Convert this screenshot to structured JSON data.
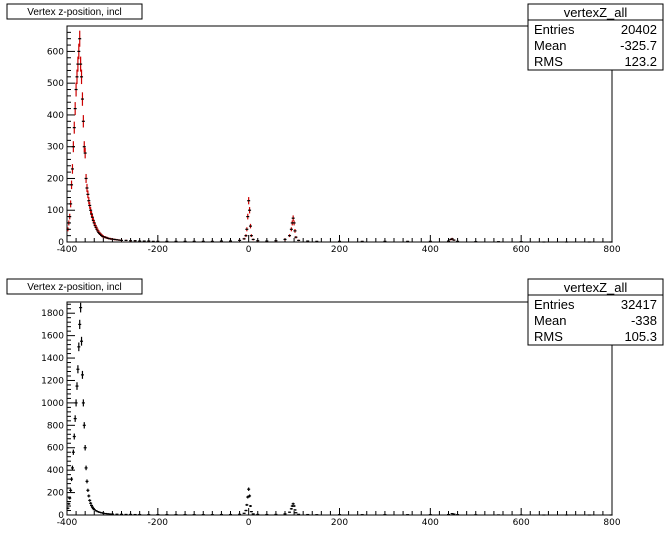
{
  "chart_data": [
    {
      "type": "histogram",
      "title": "Vertex z-position, incl",
      "stats": {
        "name": "vertexZ_all",
        "rows": [
          {
            "label": "Entries",
            "value": "20402"
          },
          {
            "label": "Mean",
            "value": "-325.7"
          },
          {
            "label": "RMS",
            "value": "123.2"
          }
        ]
      },
      "xlim": [
        -400,
        800
      ],
      "ylim": [
        0,
        680
      ],
      "x_ticks": [
        -400,
        -200,
        0,
        200,
        400,
        600,
        800
      ],
      "y_ticks": [
        0,
        100,
        200,
        300,
        400,
        500,
        600
      ],
      "grid": false,
      "marker_color": "#000000",
      "error_color": "#cc0000",
      "points": [
        [
          -398,
          40
        ],
        [
          -396,
          60
        ],
        [
          -394,
          80
        ],
        [
          -392,
          120
        ],
        [
          -390,
          180
        ],
        [
          -388,
          230
        ],
        [
          -386,
          300
        ],
        [
          -384,
          360
        ],
        [
          -382,
          420
        ],
        [
          -380,
          480
        ],
        [
          -378,
          520
        ],
        [
          -376,
          560
        ],
        [
          -374,
          600
        ],
        [
          -372,
          640
        ],
        [
          -370,
          560
        ],
        [
          -368,
          520
        ],
        [
          -366,
          450
        ],
        [
          -364,
          380
        ],
        [
          -362,
          300
        ],
        [
          -360,
          280
        ],
        [
          -358,
          200
        ],
        [
          -356,
          170
        ],
        [
          -354,
          150
        ],
        [
          -352,
          130
        ],
        [
          -350,
          115
        ],
        [
          -348,
          100
        ],
        [
          -346,
          88
        ],
        [
          -344,
          78
        ],
        [
          -342,
          68
        ],
        [
          -340,
          60
        ],
        [
          -338,
          52
        ],
        [
          -336,
          46
        ],
        [
          -334,
          40
        ],
        [
          -332,
          35
        ],
        [
          -330,
          30
        ],
        [
          -328,
          27
        ],
        [
          -326,
          24
        ],
        [
          -324,
          21
        ],
        [
          -322,
          19
        ],
        [
          -320,
          17
        ],
        [
          -316,
          15
        ],
        [
          -312,
          13
        ],
        [
          -308,
          11
        ],
        [
          -304,
          10
        ],
        [
          -300,
          9
        ],
        [
          -295,
          8
        ],
        [
          -290,
          7
        ],
        [
          -285,
          6
        ],
        [
          -280,
          5
        ],
        [
          -270,
          5
        ],
        [
          -260,
          4
        ],
        [
          -250,
          4
        ],
        [
          -240,
          3
        ],
        [
          -230,
          3
        ],
        [
          -220,
          3
        ],
        [
          -210,
          2
        ],
        [
          -200,
          2
        ],
        [
          -180,
          2
        ],
        [
          -160,
          2
        ],
        [
          -140,
          2
        ],
        [
          -120,
          2
        ],
        [
          -100,
          2
        ],
        [
          -80,
          2
        ],
        [
          -60,
          3
        ],
        [
          -40,
          3
        ],
        [
          -20,
          5
        ],
        [
          -10,
          10
        ],
        [
          -6,
          20
        ],
        [
          -4,
          40
        ],
        [
          -2,
          80
        ],
        [
          0,
          130
        ],
        [
          2,
          100
        ],
        [
          4,
          50
        ],
        [
          6,
          20
        ],
        [
          10,
          8
        ],
        [
          20,
          4
        ],
        [
          40,
          3
        ],
        [
          60,
          4
        ],
        [
          80,
          8
        ],
        [
          90,
          20
        ],
        [
          94,
          40
        ],
        [
          96,
          60
        ],
        [
          98,
          75
        ],
        [
          100,
          60
        ],
        [
          102,
          35
        ],
        [
          104,
          15
        ],
        [
          110,
          5
        ],
        [
          130,
          3
        ],
        [
          150,
          2
        ],
        [
          200,
          2
        ],
        [
          250,
          2
        ],
        [
          300,
          2
        ],
        [
          350,
          2
        ],
        [
          400,
          2
        ],
        [
          440,
          3
        ],
        [
          445,
          8
        ],
        [
          448,
          10
        ],
        [
          452,
          6
        ],
        [
          460,
          2
        ],
        [
          500,
          1
        ],
        [
          550,
          1
        ],
        [
          600,
          1
        ],
        [
          650,
          0
        ],
        [
          700,
          0
        ],
        [
          750,
          0
        ],
        [
          798,
          0
        ]
      ]
    },
    {
      "type": "histogram",
      "title": "Vertex z-position, incl",
      "stats": {
        "name": "vertexZ_all",
        "rows": [
          {
            "label": "Entries",
            "value": "32417"
          },
          {
            "label": "Mean",
            "value": "-338"
          },
          {
            "label": "RMS",
            "value": "105.3"
          }
        ]
      },
      "xlim": [
        -400,
        800
      ],
      "ylim": [
        0,
        1900
      ],
      "x_ticks": [
        -400,
        -200,
        0,
        200,
        400,
        600,
        800
      ],
      "y_ticks": [
        0,
        200,
        400,
        600,
        800,
        1000,
        1200,
        1400,
        1600,
        1800
      ],
      "grid": false,
      "marker_color": "#000000",
      "error_color": "#000000",
      "points": [
        [
          -398,
          60
        ],
        [
          -396,
          100
        ],
        [
          -394,
          150
        ],
        [
          -392,
          220
        ],
        [
          -390,
          320
        ],
        [
          -388,
          420
        ],
        [
          -386,
          560
        ],
        [
          -384,
          700
        ],
        [
          -382,
          860
        ],
        [
          -380,
          1000
        ],
        [
          -378,
          1150
        ],
        [
          -376,
          1300
        ],
        [
          -374,
          1500
        ],
        [
          -372,
          1700
        ],
        [
          -370,
          1850
        ],
        [
          -368,
          1550
        ],
        [
          -366,
          1250
        ],
        [
          -364,
          1000
        ],
        [
          -362,
          800
        ],
        [
          -360,
          600
        ],
        [
          -358,
          420
        ],
        [
          -356,
          300
        ],
        [
          -354,
          220
        ],
        [
          -352,
          170
        ],
        [
          -350,
          130
        ],
        [
          -348,
          105
        ],
        [
          -346,
          85
        ],
        [
          -344,
          70
        ],
        [
          -342,
          58
        ],
        [
          -340,
          48
        ],
        [
          -336,
          38
        ],
        [
          -332,
          30
        ],
        [
          -328,
          24
        ],
        [
          -324,
          20
        ],
        [
          -320,
          16
        ],
        [
          -315,
          13
        ],
        [
          -310,
          11
        ],
        [
          -305,
          9
        ],
        [
          -300,
          8
        ],
        [
          -290,
          7
        ],
        [
          -280,
          6
        ],
        [
          -270,
          5
        ],
        [
          -260,
          5
        ],
        [
          -250,
          4
        ],
        [
          -240,
          4
        ],
        [
          -220,
          3
        ],
        [
          -200,
          3
        ],
        [
          -180,
          3
        ],
        [
          -160,
          3
        ],
        [
          -140,
          3
        ],
        [
          -120,
          3
        ],
        [
          -100,
          3
        ],
        [
          -80,
          3
        ],
        [
          -60,
          4
        ],
        [
          -40,
          4
        ],
        [
          -20,
          6
        ],
        [
          -10,
          15
        ],
        [
          -6,
          40
        ],
        [
          -4,
          90
        ],
        [
          -2,
          160
        ],
        [
          0,
          230
        ],
        [
          2,
          170
        ],
        [
          4,
          80
        ],
        [
          6,
          30
        ],
        [
          10,
          10
        ],
        [
          20,
          5
        ],
        [
          40,
          4
        ],
        [
          60,
          5
        ],
        [
          80,
          10
        ],
        [
          90,
          25
        ],
        [
          94,
          55
        ],
        [
          96,
          80
        ],
        [
          98,
          100
        ],
        [
          100,
          80
        ],
        [
          102,
          45
        ],
        [
          104,
          20
        ],
        [
          110,
          6
        ],
        [
          130,
          4
        ],
        [
          150,
          3
        ],
        [
          200,
          3
        ],
        [
          250,
          3
        ],
        [
          300,
          3
        ],
        [
          350,
          3
        ],
        [
          400,
          3
        ],
        [
          440,
          4
        ],
        [
          448,
          12
        ],
        [
          452,
          8
        ],
        [
          460,
          3
        ],
        [
          500,
          2
        ],
        [
          550,
          1
        ],
        [
          600,
          1
        ],
        [
          650,
          0
        ],
        [
          700,
          0
        ],
        [
          750,
          0
        ],
        [
          798,
          0
        ]
      ]
    }
  ]
}
